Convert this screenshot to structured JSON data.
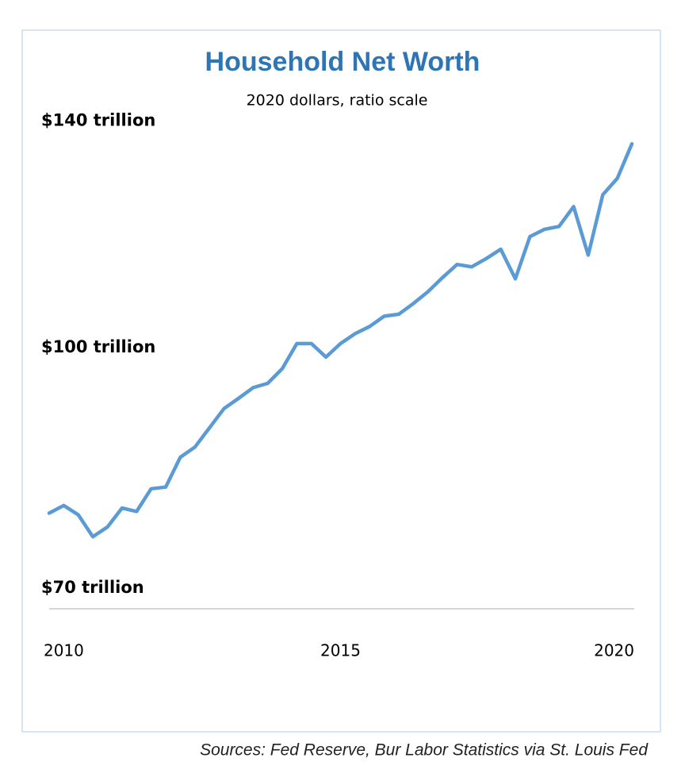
{
  "chart_data": {
    "type": "line",
    "title": "Household Net Worth",
    "subtitle": "2020 dollars, ratio scale",
    "source": "Sources: Fed Reserve, Bur Labor Statistics via St. Louis Fed",
    "x": [
      2010,
      2010.25,
      2010.5,
      2010.75,
      2011,
      2011.25,
      2011.5,
      2011.75,
      2012,
      2012.25,
      2012.5,
      2012.75,
      2013,
      2013.25,
      2013.5,
      2013.75,
      2014,
      2014.25,
      2014.5,
      2014.75,
      2015,
      2015.25,
      2015.5,
      2015.75,
      2016,
      2016.25,
      2016.5,
      2016.75,
      2017,
      2017.25,
      2017.5,
      2017.75,
      2018,
      2018.25,
      2018.5,
      2018.75,
      2019,
      2019.25,
      2019.5,
      2019.75,
      2020
    ],
    "values": [
      78.6,
      79.5,
      78.4,
      75.9,
      77.0,
      79.2,
      78.8,
      81.5,
      81.7,
      85.4,
      86.7,
      89.2,
      91.8,
      93.2,
      94.7,
      95.3,
      97.4,
      101.1,
      101.1,
      99.1,
      101.1,
      102.6,
      103.7,
      105.3,
      105.6,
      107.3,
      109.2,
      111.5,
      113.7,
      113.3,
      114.7,
      116.3,
      111.3,
      118.5,
      119.8,
      120.3,
      123.9,
      115.3,
      126.1,
      129.2,
      136.0
    ],
    "color": "#5b9bd5",
    "log_scale": true,
    "xlim": [
      2010,
      2020
    ],
    "xticks": [
      2010,
      2015,
      2020
    ],
    "ylim": [
      68.2,
      146
    ],
    "yticks": [
      {
        "value": 70,
        "label": "$70 trillion"
      },
      {
        "value": 100,
        "label": "$100 trillion"
      },
      {
        "value": 140,
        "label": "$140 trillion"
      }
    ]
  }
}
